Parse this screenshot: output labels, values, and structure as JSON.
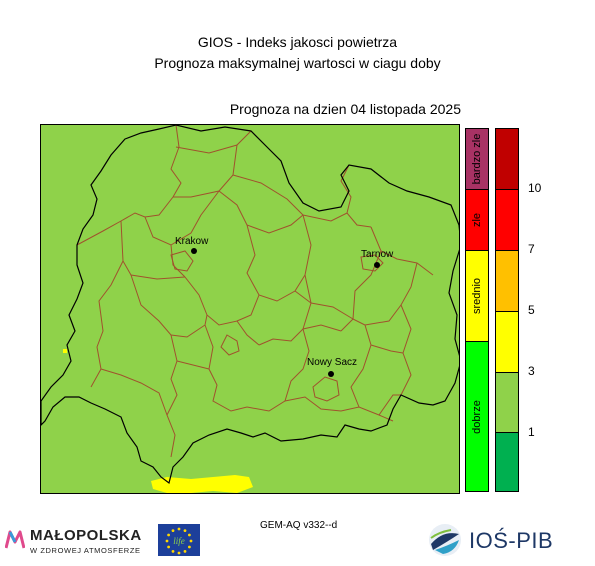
{
  "header": {
    "title": "GIOS - Indeks jakosci powietrza",
    "subtitle": "Prognoza maksymalnej wartosci w ciagu doby",
    "date_line": "Prognoza na dzien  04 listopada 2025"
  },
  "map": {
    "region": "Małopolska",
    "background_color": "#8fd24a",
    "hotspot_color": "#ffff00",
    "cities": [
      {
        "name": "Krakow"
      },
      {
        "name": "Tarnow"
      },
      {
        "name": "Nowy Sacz"
      }
    ]
  },
  "categories": [
    {
      "label": "bardzo zle",
      "color": "#a83264"
    },
    {
      "label": "zle",
      "color": "#ff0000"
    },
    {
      "label": "srednio",
      "color": "#ffff00"
    },
    {
      "label": "dobrze",
      "color": "#00ff00"
    }
  ],
  "scale": {
    "colors": [
      "#c00000",
      "#ff0000",
      "#ffc000",
      "#ffff00",
      "#8fd24a",
      "#00b050"
    ],
    "ticks": [
      "10",
      "7",
      "5",
      "3",
      "1"
    ]
  },
  "footer": {
    "model": "GEM-AQ v332--d",
    "logo_left_title": "MAŁOPOLSKA",
    "logo_left_subtitle": "W ZDROWEJ ATMOSFERZE",
    "logo_eu_text": "life",
    "logo_right": "IOŚ-PIB"
  }
}
